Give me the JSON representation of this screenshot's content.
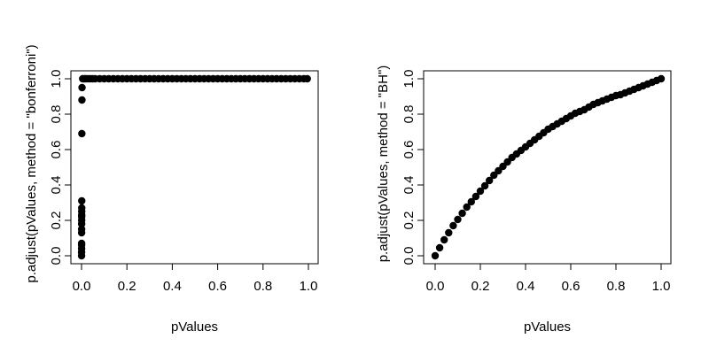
{
  "chart_data": [
    {
      "type": "scatter",
      "xlabel": "pValues",
      "ylabel": "p.adjust(pValues, method = \"bonferroni\")",
      "xlim": [
        0,
        1
      ],
      "ylim": [
        0,
        1
      ],
      "xticks": [
        "0.0",
        "0.2",
        "0.4",
        "0.6",
        "0.8",
        "1.0"
      ],
      "yticks": [
        "0.0",
        "0.2",
        "0.4",
        "0.6",
        "0.8",
        "1.0"
      ],
      "points": {
        "x": [
          0.0002,
          0.0002,
          0.0003,
          0.0003,
          0.0004,
          0.0004,
          0.0005,
          0.0005,
          0.0006,
          0.0006,
          0.0007,
          0.0008,
          0.0009,
          0.001,
          0.0014,
          0.0018,
          0.0022,
          0.005,
          0.01,
          0.015,
          0.02,
          0.03,
          0.04,
          0.05,
          0.06,
          0.08,
          0.1,
          0.12,
          0.14,
          0.16,
          0.18,
          0.2,
          0.22,
          0.24,
          0.26,
          0.28,
          0.3,
          0.32,
          0.34,
          0.36,
          0.38,
          0.4,
          0.42,
          0.44,
          0.46,
          0.48,
          0.5,
          0.52,
          0.54,
          0.56,
          0.58,
          0.6,
          0.62,
          0.64,
          0.66,
          0.68,
          0.7,
          0.72,
          0.74,
          0.76,
          0.78,
          0.8,
          0.82,
          0.84,
          0.86,
          0.88,
          0.9,
          0.92,
          0.94,
          0.96,
          0.98,
          0.995
        ],
        "y": [
          0.0,
          0.02,
          0.04,
          0.06,
          0.07,
          0.13,
          0.15,
          0.18,
          0.2,
          0.22,
          0.23,
          0.25,
          0.27,
          0.31,
          0.69,
          0.88,
          0.95,
          1,
          1,
          1,
          1,
          1,
          1,
          1,
          1,
          1,
          1,
          1,
          1,
          1,
          1,
          1,
          1,
          1,
          1,
          1,
          1,
          1,
          1,
          1,
          1,
          1,
          1,
          1,
          1,
          1,
          1,
          1,
          1,
          1,
          1,
          1,
          1,
          1,
          1,
          1,
          1,
          1,
          1,
          1,
          1,
          1,
          1,
          1,
          1,
          1,
          1,
          1,
          1,
          1,
          1,
          1
        ]
      }
    },
    {
      "type": "scatter",
      "xlabel": "pValues",
      "ylabel": "p.adjust(pValues, method = \"BH\")",
      "xlim": [
        0,
        1
      ],
      "ylim": [
        0,
        1
      ],
      "xticks": [
        "0.0",
        "0.2",
        "0.4",
        "0.6",
        "0.8",
        "1.0"
      ],
      "yticks": [
        "0.0",
        "0.2",
        "0.4",
        "0.6",
        "0.8",
        "1.0"
      ],
      "points": {
        "x": [
          0.0,
          0.02,
          0.04,
          0.06,
          0.08,
          0.1,
          0.12,
          0.14,
          0.16,
          0.18,
          0.2,
          0.22,
          0.24,
          0.26,
          0.28,
          0.3,
          0.32,
          0.34,
          0.36,
          0.38,
          0.4,
          0.42,
          0.44,
          0.46,
          0.48,
          0.5,
          0.52,
          0.54,
          0.56,
          0.58,
          0.6,
          0.62,
          0.64,
          0.66,
          0.68,
          0.7,
          0.72,
          0.74,
          0.76,
          0.78,
          0.8,
          0.82,
          0.84,
          0.86,
          0.88,
          0.9,
          0.92,
          0.94,
          0.96,
          0.98,
          1.0
        ],
        "y": [
          0.0,
          0.045,
          0.09,
          0.13,
          0.17,
          0.205,
          0.24,
          0.275,
          0.305,
          0.335,
          0.365,
          0.395,
          0.425,
          0.455,
          0.48,
          0.505,
          0.53,
          0.555,
          0.575,
          0.595,
          0.615,
          0.635,
          0.655,
          0.675,
          0.695,
          0.715,
          0.73,
          0.745,
          0.76,
          0.775,
          0.79,
          0.805,
          0.815,
          0.825,
          0.84,
          0.855,
          0.865,
          0.875,
          0.885,
          0.895,
          0.905,
          0.91,
          0.92,
          0.93,
          0.94,
          0.95,
          0.96,
          0.97,
          0.98,
          0.99,
          1.0
        ]
      }
    }
  ]
}
